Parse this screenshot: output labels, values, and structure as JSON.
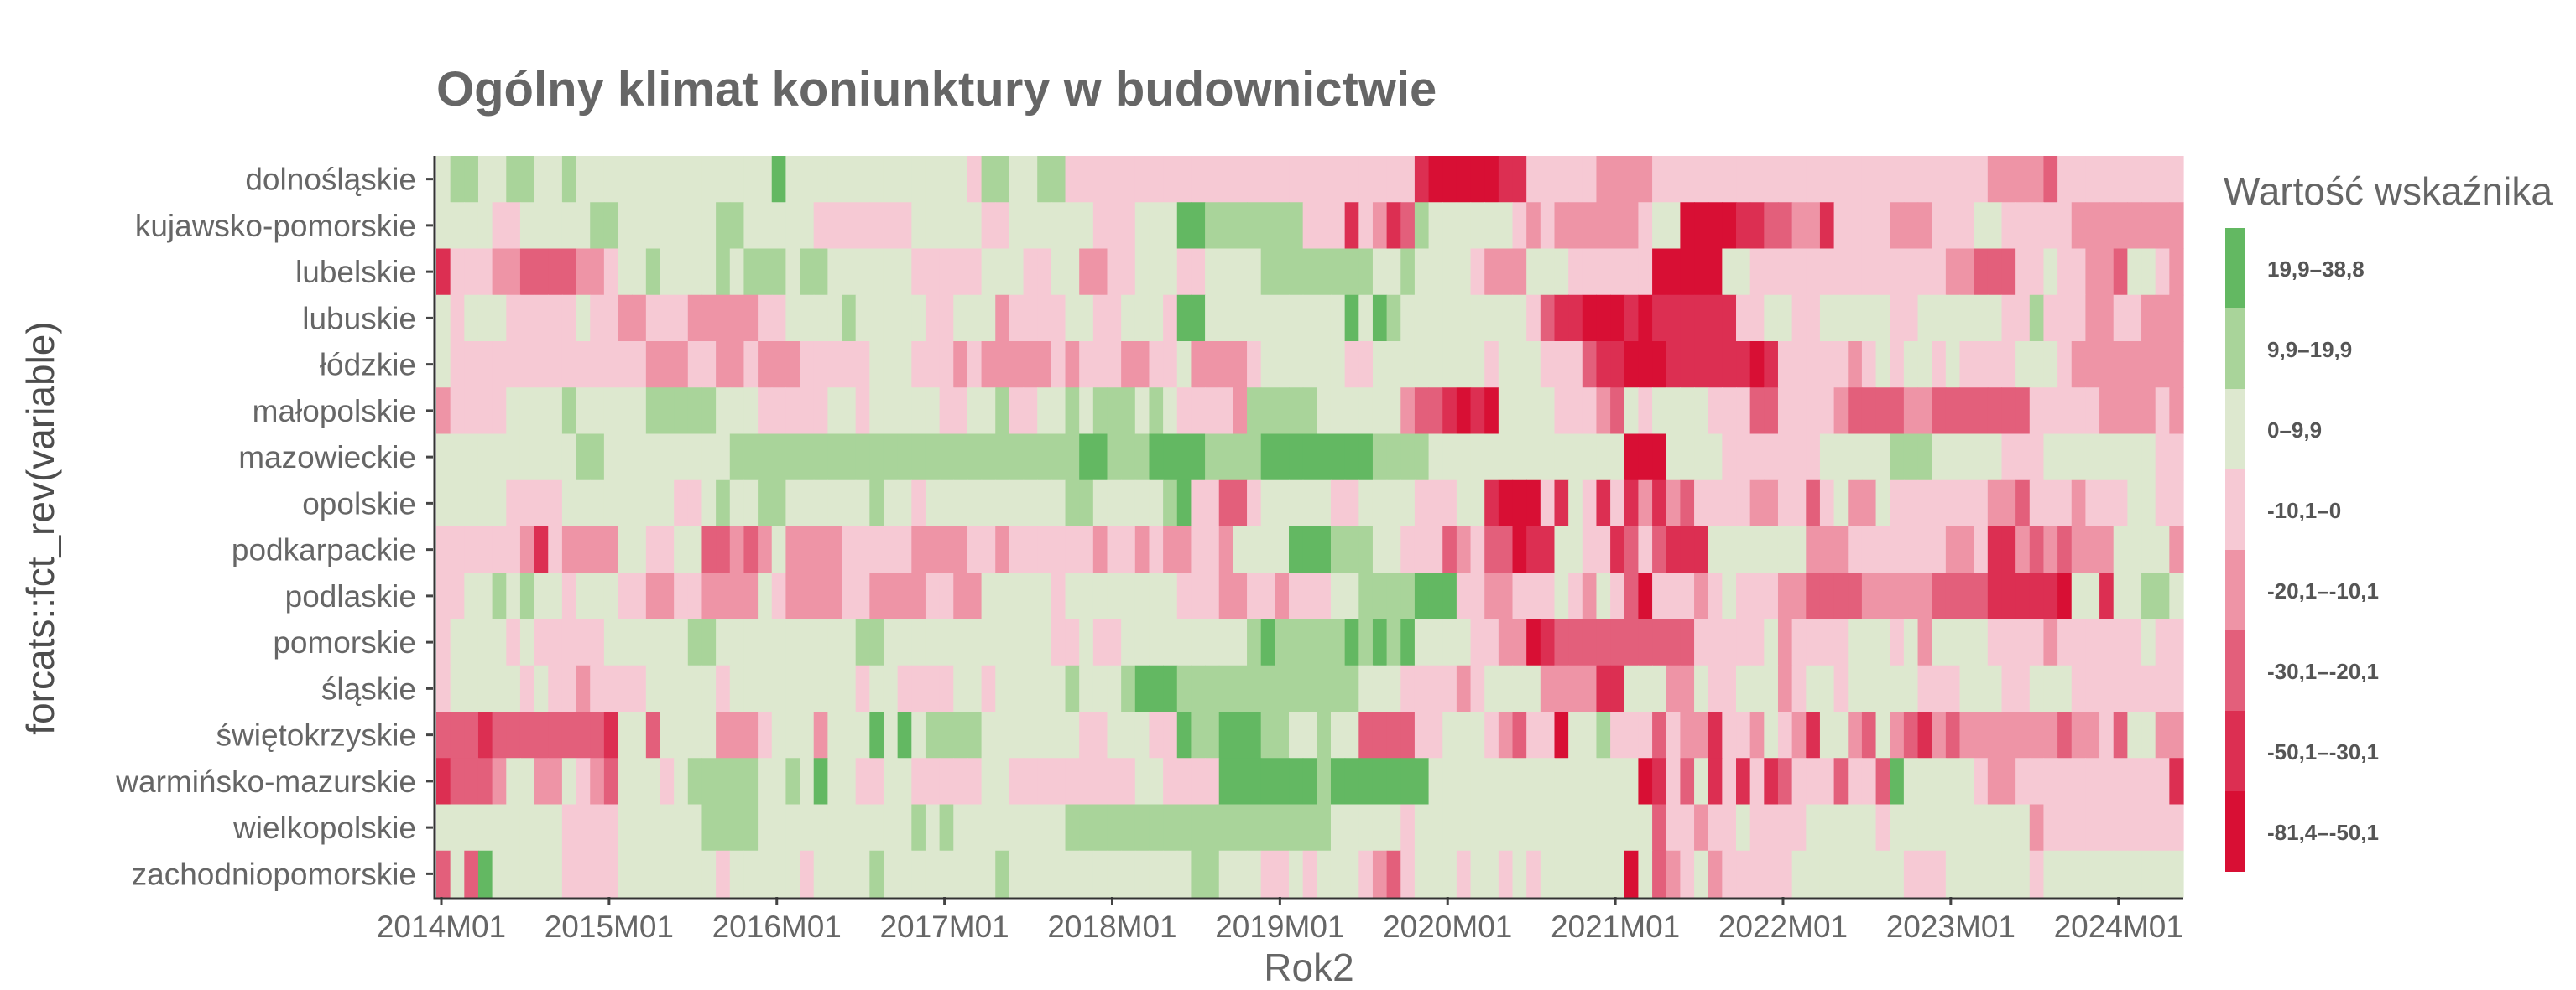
{
  "chart_data": {
    "type": "heatmap",
    "title": "Ogólny klimat koniunktury w budownictwie",
    "xlabel": "Rok2",
    "ylabel": "forcats::fct_rev(variable)",
    "x_start": "2014M01",
    "x_ticks": [
      "2014M01",
      "2015M01",
      "2016M01",
      "2017M01",
      "2018M01",
      "2019M01",
      "2020M01",
      "2021M01",
      "2022M01",
      "2023M01",
      "2024M01"
    ],
    "x_end": "2024M05",
    "categories": [
      "dolnośląskie",
      "kujawsko-pomorskie",
      "lubelskie",
      "lubuskie",
      "łódzkie",
      "małopolskie",
      "mazowieckie",
      "opolskie",
      "podkarpackie",
      "podlaskie",
      "pomorskie",
      "śląskie",
      "świętokrzyskie",
      "warmińsko-mazurskie",
      "wielkopolskie",
      "zachodniopomorskie"
    ],
    "legend": {
      "title": "Wartość wskaźnika",
      "bins": [
        {
          "label": "19,9–38,8",
          "color": "#63b862"
        },
        {
          "label": "9,9–19,9",
          "color": "#a9d49a"
        },
        {
          "label": "0–9,9",
          "color": "#dde8cf"
        },
        {
          "label": "-10,1–0",
          "color": "#f6c9d4"
        },
        {
          "label": "-20,1–-10,1",
          "color": "#ee94a6"
        },
        {
          "label": "-30,1–-20,1",
          "color": "#e35f7b"
        },
        {
          "label": "-50,1–-30,1",
          "color": "#dc2f52"
        },
        {
          "label": "-81,4–-50,1",
          "color": "#d80f34"
        }
      ]
    },
    "bin_index_note": "0 = 19,9–38,8 … 7 = -81,4–-50,1",
    "rows": [
      {
        "name": "dolnośląskie",
        "values": "2112211221222222222222220222222222222231122113333333333333333333333333677777663333344443333333333333333333333334444533333333333333"
      },
      {
        "name": "kujawsko-pomorskie",
        "values": "2222332222211222222211222223333333222223322222233322200111111133363465122222234344444432277776655446333344433322333334444444433433333"
      },
      {
        "name": "lubelskie",
        "values": "6333445555443221222212111211222222333332223322443322233222211111111221222234442223333337777722333333333333334455533233445223454455523332"
      },
      {
        "name": "lubuskie",
        "values": "2322233333233443334444433222212222233222433332233222300222222222202012222222223566777676666663322332222233222222331333443344433433333433"
      },
      {
        "name": "łódzkie",
        "values": "2333333333333334443344344433333222333434444434333443324444322222233222222223222333566777666666763333343232232333322234444444433333323454"
      },
      {
        "name": "małopolskie",
        "values": "4333322221222221111122233333223222223322133221211121233334111112222224556767222233345232222333553333455554455555553333344443444433"
      },
      {
        "name": "mazowieckie",
        "values": "2222222222112222222221111111111111111111111111001110000111100000000111122222222222222777222233333332222211122222333222222223333333333442"
      },
      {
        "name": "opolskie",
        "values": "2222233332222222233212211222222122322222222221122222103355322222332222333226777362363646453333443353244233333334453334333223334344233"
      },
      {
        "name": "podkarpackie",
        "values": "3333334634444223322554542444433333444433433333343343443342222000111223335435576622336535666222222244433333334436645454442222435653333354"
      },
      {
        "name": "podlaskie",
        "values": "3322121223222334433444423444433444433442222232222222233344334333221111000334433323423573334323334455554444455556666672262211234423444345"
      },
      {
        "name": "pomorskie",
        "values": "3222232333332222221122222222221122222222222233233222222222101111101010222233447655555555553333324333322232422223333433333323322224442333"
      },
      {
        "name": "śląskie",
        "values": "3222223233433332222232222222223223333223222221222100011111111111112223333432222444466222442332224322322222333222332223333333333333332322"
      },
      {
        "name": "świętokrzyskie",
        "values": "5556555555556225222244432224222020211112222222332223301100011221225555332223453372213335344633423462245245645444444454435224434422221111"
      },
      {
        "name": "warmińsko-mazurskie",
        "values": "6555422442345222321111122120223322333332233333333322333300000001000000022222222222222276352636365333533502222234433333333333663336633342326"
      },
      {
        "name": "wielkopolskie",
        "values": "2222222223333222222111122222222222121222222221111111111111111111222223222222222222222225334332333322222322222222224333333333333333222213222"
      },
      {
        "name": "zachodniopomorskie",
        "values": "5250222223333222222232222232222122222222122222222222221122233232223453222322323222222725432433333222222223332222223222222222221233232332"
      }
    ]
  }
}
